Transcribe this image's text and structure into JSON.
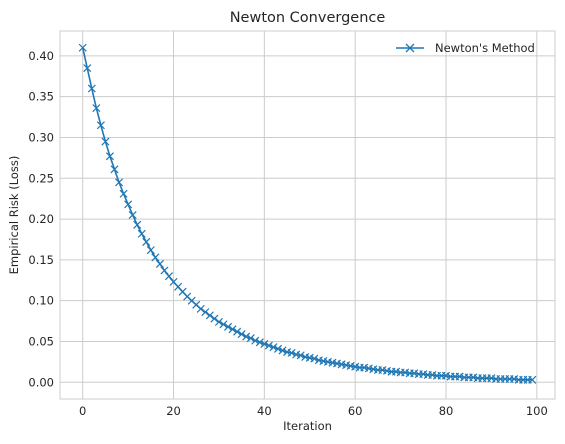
{
  "chart_data": {
    "type": "line",
    "title": "Newton Convergence",
    "xlabel": "Iteration",
    "ylabel": "Empirical Risk (Loss)",
    "xlim": [
      -5,
      104
    ],
    "ylim": [
      -0.0205,
      0.4305
    ],
    "xticks": [
      0,
      20,
      40,
      60,
      80,
      100
    ],
    "yticks": [
      0.0,
      0.05,
      0.1,
      0.15,
      0.2,
      0.25,
      0.3,
      0.35,
      0.4
    ],
    "xtick_labels": [
      "0",
      "20",
      "40",
      "60",
      "80",
      "100"
    ],
    "ytick_labels": [
      "0.00",
      "0.05",
      "0.10",
      "0.15",
      "0.20",
      "0.25",
      "0.30",
      "0.35",
      "0.40"
    ],
    "grid": true,
    "legend": {
      "position": "top-right"
    },
    "color": "#1f77b4",
    "marker": "x",
    "series": [
      {
        "name": "Newton's Method",
        "x": [
          0,
          1,
          2,
          3,
          4,
          5,
          6,
          7,
          8,
          9,
          10,
          11,
          12,
          13,
          14,
          15,
          16,
          17,
          18,
          19,
          20,
          21,
          22,
          23,
          24,
          25,
          26,
          27,
          28,
          29,
          30,
          31,
          32,
          33,
          34,
          35,
          36,
          37,
          38,
          39,
          40,
          41,
          42,
          43,
          44,
          45,
          46,
          47,
          48,
          49,
          50,
          51,
          52,
          53,
          54,
          55,
          56,
          57,
          58,
          59,
          60,
          61,
          62,
          63,
          64,
          65,
          66,
          67,
          68,
          69,
          70,
          71,
          72,
          73,
          74,
          75,
          76,
          77,
          78,
          79,
          80,
          81,
          82,
          83,
          84,
          85,
          86,
          87,
          88,
          89,
          90,
          91,
          92,
          93,
          94,
          95,
          96,
          97,
          98,
          99
        ],
        "values": [
          0.41,
          0.385,
          0.36,
          0.336,
          0.315,
          0.295,
          0.277,
          0.261,
          0.245,
          0.231,
          0.218,
          0.205,
          0.193,
          0.182,
          0.172,
          0.162,
          0.153,
          0.145,
          0.137,
          0.13,
          0.123,
          0.117,
          0.111,
          0.105,
          0.1,
          0.095,
          0.09,
          0.086,
          0.082,
          0.078,
          0.074,
          0.071,
          0.068,
          0.065,
          0.062,
          0.059,
          0.056,
          0.054,
          0.051,
          0.049,
          0.047,
          0.045,
          0.043,
          0.041,
          0.039,
          0.037,
          0.036,
          0.034,
          0.033,
          0.031,
          0.03,
          0.029,
          0.027,
          0.026,
          0.025,
          0.024,
          0.023,
          0.022,
          0.021,
          0.02,
          0.019,
          0.018,
          0.018,
          0.017,
          0.016,
          0.015,
          0.015,
          0.014,
          0.013,
          0.013,
          0.012,
          0.012,
          0.011,
          0.011,
          0.01,
          0.01,
          0.009,
          0.009,
          0.008,
          0.008,
          0.008,
          0.007,
          0.007,
          0.007,
          0.006,
          0.006,
          0.006,
          0.005,
          0.005,
          0.005,
          0.005,
          0.004,
          0.004,
          0.004,
          0.004,
          0.004,
          0.003,
          0.003,
          0.003,
          0.003
        ]
      }
    ]
  }
}
